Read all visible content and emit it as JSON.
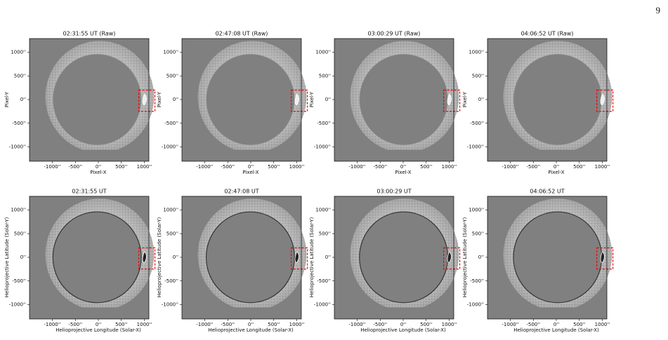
{
  "page_number": "9",
  "x_ticks": [
    "-1000''",
    "-500''",
    "0''",
    "500''",
    "1000''"
  ],
  "y_ticks": [
    "1000''",
    "500''",
    "0''",
    "-500''",
    "-1000''"
  ],
  "rows": [
    {
      "x_label": "Pixel-X",
      "y_label": "Pixel-Y",
      "titles": [
        "02:31:55 UT (Raw)",
        "02:47:08 UT (Raw)",
        "03:00:29 UT (Raw)",
        "04:06:52 UT (Raw)"
      ]
    },
    {
      "x_label": "Helioprojective Longitude (Solar-X)",
      "y_label": "Helioprojective Latitude (Solar-Y)",
      "titles": [
        "02:31:55 UT",
        "02:47:08 UT",
        "03:00:29 UT",
        "04:06:52 UT"
      ]
    }
  ]
}
